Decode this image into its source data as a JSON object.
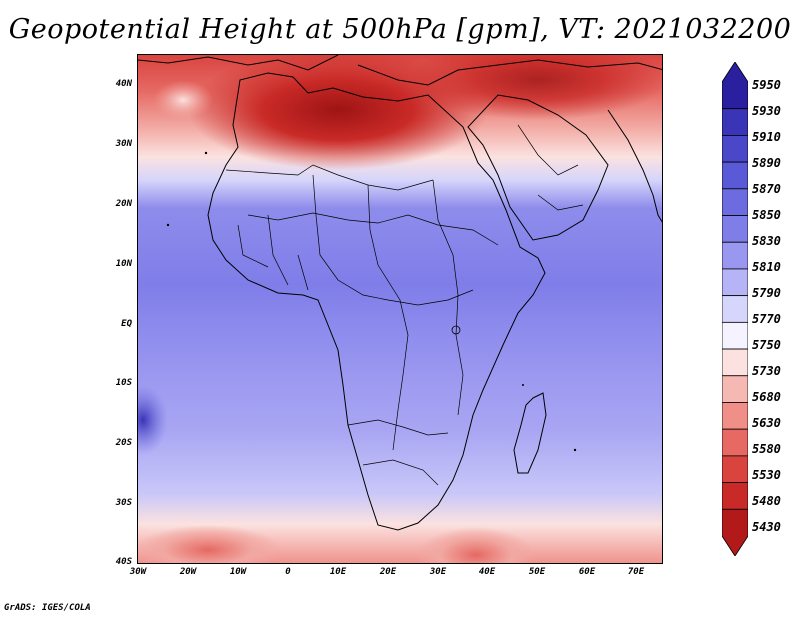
{
  "title": "Geopotential Height at 500hPa [gpm], VT: 2021032200",
  "map": {
    "name": "africa-500hpa-height-map",
    "region": "Africa",
    "lon_range": [
      -30,
      75
    ],
    "lat_range": [
      -40,
      45
    ]
  },
  "axes": {
    "lat_labels": [
      "40N",
      "30N",
      "20N",
      "10N",
      "EQ",
      "10S",
      "20S",
      "30S",
      "40S"
    ],
    "lon_labels": [
      "30W",
      "20W",
      "10W",
      "0",
      "10E",
      "20E",
      "30E",
      "40E",
      "50E",
      "60E",
      "70E"
    ]
  },
  "colorbar": {
    "levels": [
      "5950",
      "5930",
      "5910",
      "5890",
      "5870",
      "5850",
      "5830",
      "5810",
      "5790",
      "5770",
      "5750",
      "5730",
      "5680",
      "5630",
      "5580",
      "5530",
      "5480",
      "5430"
    ],
    "colors": [
      "#2a1f9e",
      "#3a34b6",
      "#4a48c8",
      "#5b5ad6",
      "#6c6be0",
      "#7f7ee9",
      "#9a97f0",
      "#b6b4f6",
      "#d6d5fb",
      "#f4f3ff",
      "#fbe2e0",
      "#f6b8b3",
      "#ef8f88",
      "#e66963",
      "#d9443f",
      "#c92a27",
      "#b21a1a"
    ]
  },
  "footer": "GrADS: IGES/COLA"
}
